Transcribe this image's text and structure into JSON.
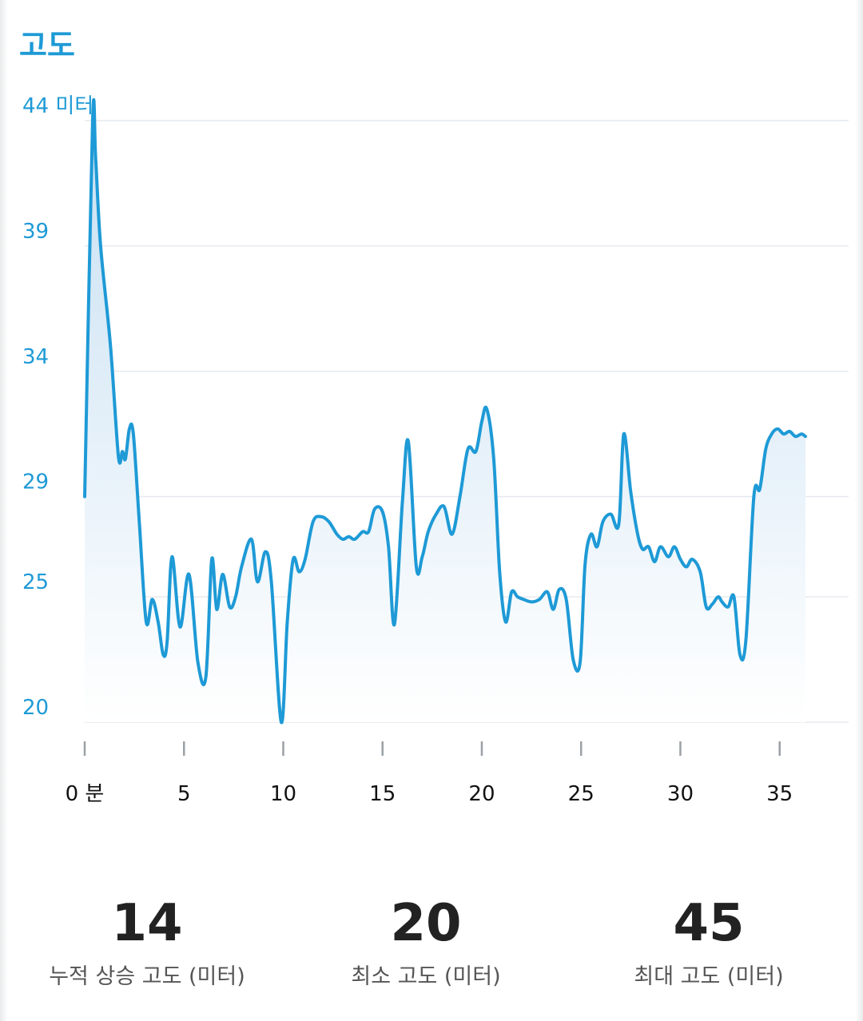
{
  "title": "고도",
  "chart_data": {
    "type": "area",
    "y_ticks": [
      {
        "v": 44,
        "label": "44 미터"
      },
      {
        "v": 39,
        "label": "39"
      },
      {
        "v": 34,
        "label": "34"
      },
      {
        "v": 29,
        "label": "29"
      },
      {
        "v": 25,
        "label": "25"
      },
      {
        "v": 20,
        "label": "20"
      }
    ],
    "x_ticks": [
      {
        "v": 0,
        "label": "0 분"
      },
      {
        "v": 5,
        "label": "5"
      },
      {
        "v": 10,
        "label": "10"
      },
      {
        "v": 15,
        "label": "15"
      },
      {
        "v": 20,
        "label": "20"
      },
      {
        "v": 25,
        "label": "25"
      },
      {
        "v": 30,
        "label": "30"
      },
      {
        "v": 35,
        "label": "35"
      }
    ],
    "xlim": [
      0,
      36.3
    ],
    "x": [
      0,
      0.4,
      0.55,
      0.8,
      1.3,
      1.7,
      1.9,
      2.05,
      2.25,
      2.45,
      2.75,
      3.1,
      3.4,
      3.7,
      3.95,
      4.15,
      4.4,
      4.8,
      5.25,
      5.7,
      6.1,
      6.4,
      6.65,
      6.95,
      7.3,
      7.6,
      7.9,
      8.4,
      8.7,
      9.1,
      9.4,
      9.9,
      10.2,
      10.5,
      10.8,
      11.1,
      11.5,
      11.9,
      12.3,
      12.7,
      13.0,
      13.3,
      13.6,
      14.0,
      14.3,
      14.6,
      15.0,
      15.3,
      15.6,
      16.0,
      16.3,
      16.7,
      17.0,
      17.3,
      17.7,
      18.1,
      18.5,
      18.9,
      19.3,
      19.7,
      20.0,
      20.25,
      20.6,
      20.9,
      21.2,
      21.5,
      21.8,
      22.1,
      22.5,
      22.9,
      23.3,
      23.6,
      23.9,
      24.25,
      24.6,
      24.95,
      25.2,
      25.5,
      25.8,
      26.1,
      26.5,
      26.9,
      27.15,
      27.5,
      27.85,
      28.1,
      28.4,
      28.7,
      29.0,
      29.4,
      29.7,
      30.0,
      30.3,
      30.6,
      31.0,
      31.3,
      31.6,
      31.9,
      32.1,
      32.4,
      32.7,
      33.0,
      33.3,
      33.7,
      34.0,
      34.3,
      34.6,
      34.9,
      35.2,
      35.5,
      35.8,
      36.1,
      36.3
    ],
    "values": [
      29.0,
      44.0,
      42.5,
      39.0,
      35.0,
      30.6,
      30.8,
      30.5,
      31.7,
      31.5,
      28.0,
      24.0,
      24.9,
      24.0,
      22.7,
      23.2,
      26.6,
      23.8,
      25.9,
      22.4,
      21.8,
      26.5,
      24.5,
      25.9,
      24.6,
      25.0,
      26.2,
      27.3,
      25.6,
      26.8,
      25.6,
      20.0,
      24.0,
      26.5,
      26.0,
      26.5,
      28.0,
      28.2,
      28.0,
      27.5,
      27.3,
      27.4,
      27.3,
      27.6,
      27.6,
      28.5,
      28.4,
      27.0,
      23.9,
      28.8,
      31.2,
      26.2,
      26.6,
      27.6,
      28.3,
      28.6,
      27.5,
      29.0,
      30.9,
      30.8,
      32.0,
      32.5,
      30.5,
      26.0,
      24.0,
      25.2,
      25.0,
      24.9,
      24.8,
      24.9,
      25.2,
      24.5,
      25.3,
      24.9,
      22.5,
      22.4,
      26.3,
      27.5,
      27.0,
      28.0,
      28.3,
      27.9,
      31.5,
      29.2,
      27.5,
      26.9,
      27.0,
      26.4,
      27.0,
      26.6,
      27.0,
      26.5,
      26.2,
      26.5,
      26.0,
      24.6,
      24.7,
      25.0,
      24.8,
      24.6,
      25.0,
      22.7,
      23.3,
      29.0,
      29.3,
      30.9,
      31.5,
      31.7,
      31.5,
      31.6,
      31.4,
      31.5,
      31.4
    ],
    "xlabel": "",
    "ylabel": "",
    "ylim": [
      20,
      44
    ],
    "grid": true,
    "colors": {
      "line": "#1e9ad6",
      "fill_top": "#c6dff2",
      "fill_bottom": "#ffffff",
      "grid": "#e6e9ee"
    }
  },
  "stats": [
    {
      "value": "14",
      "label": "누적 상승 고도 (미터)"
    },
    {
      "value": "20",
      "label": "최소 고도 (미터)"
    },
    {
      "value": "45",
      "label": "최대 고도 (미터)"
    }
  ]
}
